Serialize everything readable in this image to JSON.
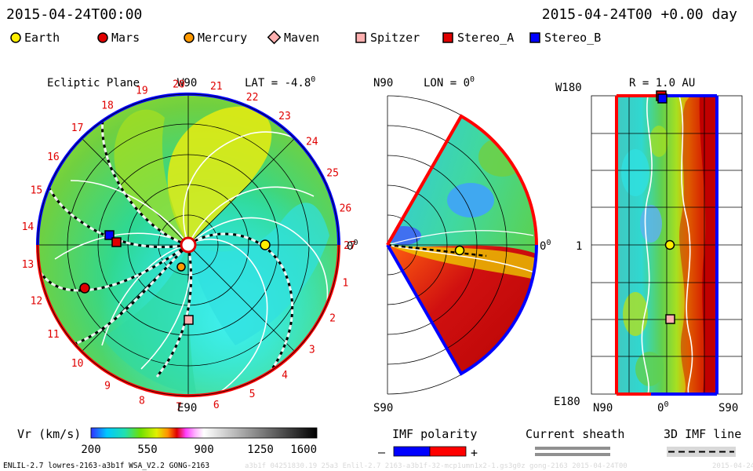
{
  "header": {
    "date_left": "2015-04-24T00:00",
    "date_right": "2015-04-24T00 +0.00 day"
  },
  "legend": [
    {
      "name": "Earth",
      "color": "#ffee00",
      "shape": "circle"
    },
    {
      "name": "Mars",
      "color": "#e00000",
      "shape": "circle"
    },
    {
      "name": "Mercury",
      "color": "#ff9900",
      "shape": "circle"
    },
    {
      "name": "Maven",
      "color": "#ffb0b0",
      "shape": "diamond"
    },
    {
      "name": "Spitzer",
      "color": "#ffb0b0",
      "shape": "square"
    },
    {
      "name": "Stereo_A",
      "color": "#e00000",
      "shape": "square"
    },
    {
      "name": "Stereo_B",
      "color": "#0000ff",
      "shape": "square"
    }
  ],
  "panels": {
    "ecliptic": {
      "title": "Ecliptic Plane",
      "top_label": "W90",
      "lat_label": "LAT = -4.8",
      "lat_sup": "0",
      "bottom_label": "E90",
      "right_label": "0",
      "right_sup": "0",
      "ticks": [
        "1",
        "2",
        "3",
        "4",
        "5",
        "6",
        "7",
        "8",
        "9",
        "10",
        "11",
        "12",
        "13",
        "14",
        "15",
        "16",
        "17",
        "18",
        "19",
        "20",
        "21",
        "22",
        "23",
        "24",
        "25",
        "26",
        "27"
      ]
    },
    "meridional": {
      "top_label": "N90",
      "lon_label": "LON = 0",
      "lon_sup": "0",
      "right_label": "0",
      "right_sup": "0",
      "bottom_label": "S90"
    },
    "radial": {
      "title": "R = 1.0 AU",
      "left_top": "W180",
      "left_mid": "1",
      "left_bottom": "E180",
      "x_left": "N90",
      "x_mid": "0",
      "x_mid_sup": "0",
      "x_right": "S90"
    }
  },
  "colorbar": {
    "label": "Vr (km/s)",
    "ticks": [
      "200",
      "550",
      "900",
      "1250",
      "1600"
    ],
    "min": 200,
    "max": 1600
  },
  "imf_legend": {
    "title": "IMF polarity",
    "minus": "–",
    "plus": "+",
    "colors": [
      "#0000ff",
      "#ff0000"
    ]
  },
  "sheath_legend": {
    "title": "Current sheath"
  },
  "imf3d_legend": {
    "title": "3D IMF line"
  },
  "footer": {
    "model": "ENLIL-2.7 lowres-2163-a3b1f WSA_V2.2 GONG-2163",
    "faint": "a3b1f 04251830.19 25a3 Enlil-2.7 2163-a3b1f-32-mcp1umn1x2-1.gs3g0z gong-2163 2015-04-24T00",
    "faint_date": "2015-04-24"
  },
  "chart_data": {
    "type": "heatmap",
    "quantity": "Vr (km/s)",
    "range": [
      200,
      1600
    ],
    "time": "2015-04-24T00:00",
    "body_markers": [
      "Earth",
      "Mars",
      "Mercury",
      "Spitzer",
      "Stereo_A",
      "Stereo_B"
    ]
  }
}
